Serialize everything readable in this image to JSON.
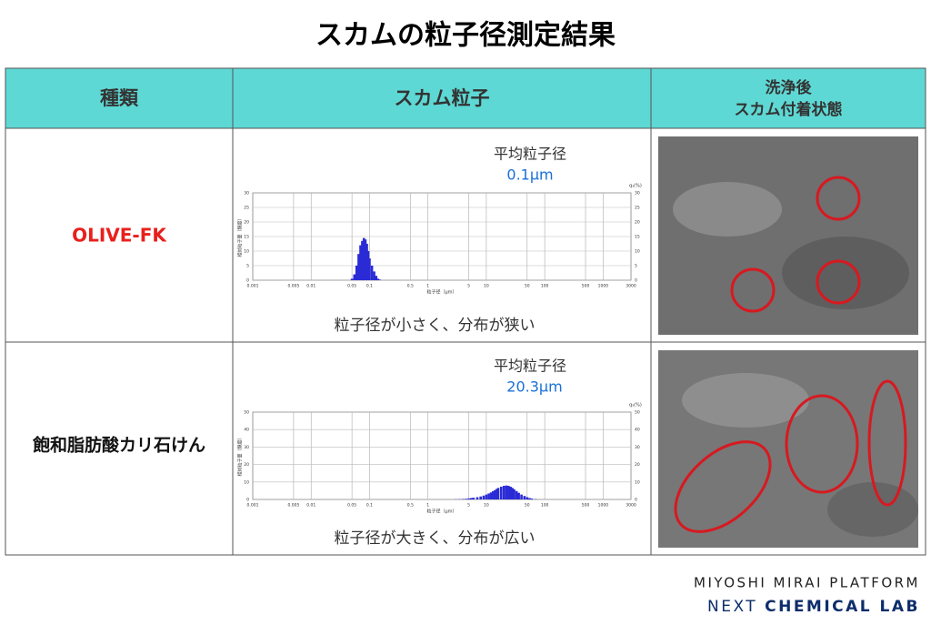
{
  "title": "スカムの粒子径測定結果",
  "table": {
    "headers": [
      "種類",
      "スカム粒子",
      [
        "洗浄後",
        "スカム付着状態"
      ]
    ],
    "rows": [
      {
        "name": "OLIVE-FK",
        "avg_label": "平均粒子径",
        "avg_value": "0.1μm",
        "caption": "粒子径が小さく、分布が狭い",
        "chart": {
          "type": "bar",
          "log_x": true,
          "color": "#2b2bd6",
          "x_label": "粒子径（μm）",
          "y_label": "相対粒子量（頻度）",
          "y2_label": "q₃(%)",
          "xlim": [
            0.001,
            3000
          ],
          "xticks": [
            0.001,
            0.005,
            0.01,
            0.05,
            0.1,
            0.5,
            1,
            5,
            10,
            50,
            100,
            500,
            1000,
            3000
          ],
          "ylim": [
            0,
            30
          ],
          "yticks": [
            0,
            5,
            10,
            15,
            20,
            25,
            30
          ],
          "y2lim": [
            0,
            30
          ],
          "y2ticks": [
            0,
            5,
            10,
            15,
            20,
            25,
            30
          ],
          "grid": true,
          "x": [
            0.05,
            0.055,
            0.06,
            0.065,
            0.07,
            0.075,
            0.08,
            0.085,
            0.09,
            0.095,
            0.1,
            0.11,
            0.12,
            0.13,
            0.14,
            0.15
          ],
          "values": [
            0.5,
            2,
            5,
            9,
            12,
            13.5,
            14.5,
            14,
            12.5,
            10,
            7.5,
            5,
            3,
            1.5,
            0.5,
            0.2
          ]
        }
      },
      {
        "name": "飽和脂肪酸カリ石けん",
        "avg_label": "平均粒子径",
        "avg_value": "20.3μm",
        "caption": "粒子径が大きく、分布が広い",
        "chart": {
          "type": "bar",
          "log_x": true,
          "color": "#2b2bd6",
          "x_label": "粒子径（μm）",
          "y_label": "相対粒子量（頻度）",
          "y2_label": "q₃(%)",
          "xlim": [
            0.001,
            3000
          ],
          "xticks": [
            0.001,
            0.005,
            0.01,
            0.05,
            0.1,
            0.5,
            1,
            5,
            10,
            50,
            100,
            500,
            1000,
            3000
          ],
          "ylim": [
            0,
            50
          ],
          "yticks": [
            0,
            10,
            20,
            30,
            40,
            50
          ],
          "y2lim": [
            0,
            50
          ],
          "y2ticks": [
            0,
            10,
            20,
            30,
            40,
            50
          ],
          "grid": true,
          "x": [
            3,
            3.5,
            4,
            4.5,
            5,
            5.5,
            6,
            7,
            8,
            9,
            10,
            11,
            12,
            13,
            14,
            15,
            16,
            18,
            20,
            22,
            24,
            26,
            28,
            30,
            33,
            36,
            40,
            45,
            50,
            55,
            60,
            70
          ],
          "values": [
            0.1,
            0.2,
            0.3,
            0.4,
            0.6,
            0.8,
            1,
            1.3,
            1.7,
            2.2,
            2.8,
            3.4,
            4,
            4.7,
            5.3,
            6,
            6.6,
            7.3,
            7.8,
            8,
            7.8,
            7.3,
            6.6,
            5.8,
            4.8,
            3.8,
            2.8,
            2,
            1.3,
            0.8,
            0.5,
            0.2
          ]
        }
      }
    ]
  },
  "footer": {
    "line1": "MIYOSHI MIRAI PLATFORM",
    "line2a": "NEXT",
    "line2b": "CHEMICAL LAB"
  }
}
